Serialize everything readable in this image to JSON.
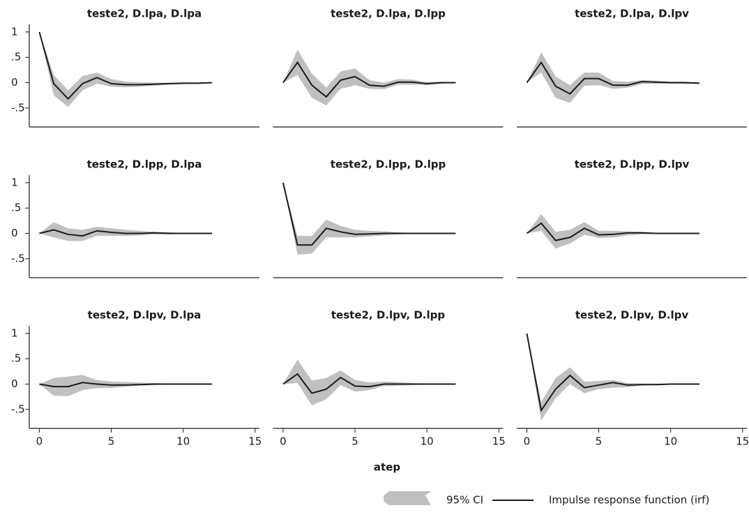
{
  "chart_data": [
    {
      "type": "line",
      "title": "teste2, D.lpa, D.lpa",
      "x": [
        0,
        1,
        2,
        3,
        4,
        5,
        6,
        7,
        8,
        9,
        10,
        11,
        12
      ],
      "irf": [
        1,
        -0.02,
        -0.32,
        -0.02,
        0.1,
        -0.02,
        -0.04,
        -0.04,
        -0.03,
        -0.02,
        -0.01,
        -0.01,
        0
      ],
      "ci_lower": [
        1,
        -0.25,
        -0.48,
        -0.15,
        -0.02,
        -0.08,
        -0.09,
        -0.08,
        -0.06,
        -0.04,
        -0.03,
        -0.02,
        -0.01
      ],
      "ci_upper": [
        1,
        0.15,
        -0.15,
        0.13,
        0.2,
        0.07,
        0.02,
        0.01,
        0,
        0,
        0,
        0,
        0.01
      ],
      "xlim": [
        -0.7,
        15.3
      ],
      "ylim": [
        -0.875,
        1.15
      ],
      "yticks": [
        1,
        {
          "value": 0.5,
          "label": ".5"
        },
        0,
        {
          "value": -0.5,
          "label": "-.5"
        }
      ]
    },
    {
      "type": "line",
      "title": "teste2, D.lpa, D.lpp",
      "x": [
        0,
        1,
        2,
        3,
        4,
        5,
        6,
        7,
        8,
        9,
        10,
        11,
        12
      ],
      "irf": [
        0,
        0.4,
        -0.05,
        -0.28,
        0.05,
        0.12,
        -0.05,
        -0.07,
        0.01,
        0.01,
        -0.02,
        0,
        0
      ],
      "ci_lower": [
        0,
        0.15,
        -0.3,
        -0.45,
        -0.12,
        -0.05,
        -0.12,
        -0.13,
        -0.04,
        -0.04,
        -0.05,
        -0.02,
        -0.01
      ],
      "ci_upper": [
        0,
        0.65,
        0.18,
        -0.1,
        0.22,
        0.28,
        0.05,
        0,
        0.07,
        0.06,
        0.01,
        0.02,
        0.01
      ],
      "xlim": [
        -0.7,
        15.3
      ],
      "ylim": [
        -0.875,
        1.15
      ]
    },
    {
      "type": "line",
      "title": "teste2, D.lpa, D.lpv",
      "x": [
        0,
        1,
        2,
        3,
        4,
        5,
        6,
        7,
        8,
        9,
        10,
        11,
        12
      ],
      "irf": [
        0,
        0.4,
        -0.07,
        -0.22,
        0.08,
        0.08,
        -0.05,
        -0.05,
        0.02,
        0.01,
        0,
        0,
        -0.01
      ],
      "ci_lower": [
        0,
        0.2,
        -0.3,
        -0.4,
        -0.06,
        -0.05,
        -0.12,
        -0.1,
        -0.03,
        -0.02,
        -0.02,
        -0.02,
        -0.02
      ],
      "ci_upper": [
        0,
        0.6,
        0.12,
        -0.05,
        0.2,
        0.2,
        0.03,
        0.02,
        0.05,
        0.04,
        0.02,
        0.02,
        0
      ],
      "xlim": [
        -0.7,
        15.3
      ],
      "ylim": [
        -0.875,
        1.15
      ]
    },
    {
      "type": "line",
      "title": "teste2, D.lpp, D.lpa",
      "x": [
        0,
        1,
        2,
        3,
        4,
        5,
        6,
        7,
        8,
        9,
        10,
        11,
        12
      ],
      "irf": [
        0,
        0.07,
        -0.02,
        -0.05,
        0.05,
        0.02,
        0,
        0,
        0.01,
        0,
        0,
        0,
        0
      ],
      "ci_lower": [
        0,
        -0.08,
        -0.15,
        -0.15,
        -0.05,
        -0.05,
        -0.05,
        -0.04,
        -0.02,
        -0.02,
        -0.01,
        -0.01,
        -0.01
      ],
      "ci_upper": [
        0,
        0.22,
        0.1,
        0.07,
        0.13,
        0.1,
        0.07,
        0.05,
        0.03,
        0.02,
        0.01,
        0.01,
        0.01
      ],
      "xlim": [
        -0.7,
        15.3
      ],
      "ylim": [
        -0.875,
        1.15
      ],
      "yticks": [
        1,
        {
          "value": 0.5,
          "label": ".5"
        },
        0,
        {
          "value": -0.5,
          "label": "-.5"
        }
      ]
    },
    {
      "type": "line",
      "title": "teste2, D.lpp, D.lpp",
      "x": [
        0,
        1,
        2,
        3,
        4,
        5,
        6,
        7,
        8,
        9,
        10,
        11,
        12
      ],
      "irf": [
        1,
        -0.23,
        -0.23,
        0.1,
        0.03,
        -0.02,
        -0.01,
        0,
        0,
        0,
        0,
        0,
        0
      ],
      "ci_lower": [
        1,
        -0.42,
        -0.4,
        -0.08,
        -0.08,
        -0.08,
        -0.06,
        -0.04,
        -0.02,
        -0.01,
        -0.01,
        -0.01,
        0
      ],
      "ci_upper": [
        1,
        -0.05,
        -0.05,
        0.27,
        0.15,
        0.07,
        0.05,
        0.04,
        0.02,
        0.01,
        0.01,
        0.01,
        0.01
      ],
      "xlim": [
        -0.7,
        15.3
      ],
      "ylim": [
        -0.875,
        1.15
      ]
    },
    {
      "type": "line",
      "title": "teste2, D.lpp, D.lpv",
      "x": [
        0,
        1,
        2,
        3,
        4,
        5,
        6,
        7,
        8,
        9,
        10,
        11,
        12
      ],
      "irf": [
        0,
        0.2,
        -0.14,
        -0.08,
        0.1,
        -0.03,
        -0.02,
        0.01,
        0.01,
        0,
        0,
        0,
        0
      ],
      "ci_lower": [
        0,
        0.05,
        -0.3,
        -0.2,
        -0.03,
        -0.09,
        -0.08,
        -0.04,
        -0.02,
        -0.01,
        -0.01,
        0,
        0
      ],
      "ci_upper": [
        0,
        0.38,
        0.03,
        0.07,
        0.22,
        0.05,
        0.05,
        0.04,
        0.03,
        0.01,
        0.01,
        0.01,
        0
      ],
      "xlim": [
        -0.7,
        15.3
      ],
      "ylim": [
        -0.875,
        1.15
      ]
    },
    {
      "type": "line",
      "title": "teste2, D.lpv, D.lpa",
      "x": [
        0,
        1,
        2,
        3,
        4,
        5,
        6,
        7,
        8,
        9,
        10,
        11,
        12
      ],
      "irf": [
        0,
        -0.05,
        -0.05,
        0.03,
        0,
        -0.02,
        -0.02,
        -0.01,
        0,
        0,
        0,
        0,
        0
      ],
      "ci_lower": [
        0,
        -0.23,
        -0.24,
        -0.12,
        -0.08,
        -0.08,
        -0.05,
        -0.03,
        -0.02,
        -0.01,
        -0.01,
        0,
        0
      ],
      "ci_upper": [
        0,
        0.12,
        0.15,
        0.18,
        0.08,
        0.05,
        0.04,
        0.03,
        0.02,
        0.01,
        0.01,
        0,
        0
      ],
      "xlim": [
        -0.7,
        15.3
      ],
      "ylim": [
        -0.875,
        1.15
      ],
      "yticks": [
        1,
        {
          "value": 0.5,
          "label": ".5"
        },
        0,
        {
          "value": -0.5,
          "label": "-.5"
        }
      ],
      "xticks": [
        0,
        5,
        10,
        15
      ]
    },
    {
      "type": "line",
      "title": "teste2, D.lpv, D.lpp",
      "x": [
        0,
        1,
        2,
        3,
        4,
        5,
        6,
        7,
        8,
        9,
        10,
        11,
        12
      ],
      "irf": [
        0,
        0.2,
        -0.18,
        -0.1,
        0.13,
        -0.04,
        -0.05,
        0,
        0,
        0,
        0,
        0,
        0
      ],
      "ci_lower": [
        0,
        0.02,
        -0.42,
        -0.3,
        -0.02,
        -0.15,
        -0.12,
        -0.04,
        -0.03,
        -0.02,
        -0.01,
        0,
        0
      ],
      "ci_upper": [
        0,
        0.48,
        0.07,
        0.12,
        0.27,
        0.08,
        0.03,
        0.05,
        0.04,
        0.02,
        0.01,
        0.01,
        0
      ],
      "xlim": [
        -0.7,
        15.3
      ],
      "ylim": [
        -0.875,
        1.15
      ],
      "xticks": [
        0,
        5,
        10,
        15
      ]
    },
    {
      "type": "line",
      "title": "teste2, D.lpv, D.lpv",
      "x": [
        0,
        1,
        2,
        3,
        4,
        5,
        6,
        7,
        8,
        9,
        10,
        11,
        12
      ],
      "irf": [
        1,
        -0.52,
        -0.1,
        0.17,
        -0.07,
        -0.02,
        0.03,
        -0.02,
        -0.01,
        -0.01,
        0,
        0,
        0
      ],
      "ci_lower": [
        1,
        -0.72,
        -0.28,
        0,
        -0.18,
        -0.1,
        -0.07,
        -0.06,
        -0.03,
        -0.02,
        -0.01,
        -0.01,
        0
      ],
      "ci_upper": [
        1,
        -0.35,
        0.12,
        0.33,
        0.05,
        0.06,
        0.08,
        0.02,
        0.01,
        0.01,
        0.01,
        0,
        0
      ],
      "xlim": [
        -0.7,
        15.3
      ],
      "ylim": [
        -0.875,
        1.15
      ],
      "xticks": [
        0,
        5,
        10,
        15
      ]
    }
  ],
  "xlabel": "atep",
  "legend": [
    {
      "label": "95% CI",
      "color": "#c0c0c0"
    },
    {
      "label": "Impulse response function (irf)",
      "color": "#1a1a1a"
    }
  ]
}
